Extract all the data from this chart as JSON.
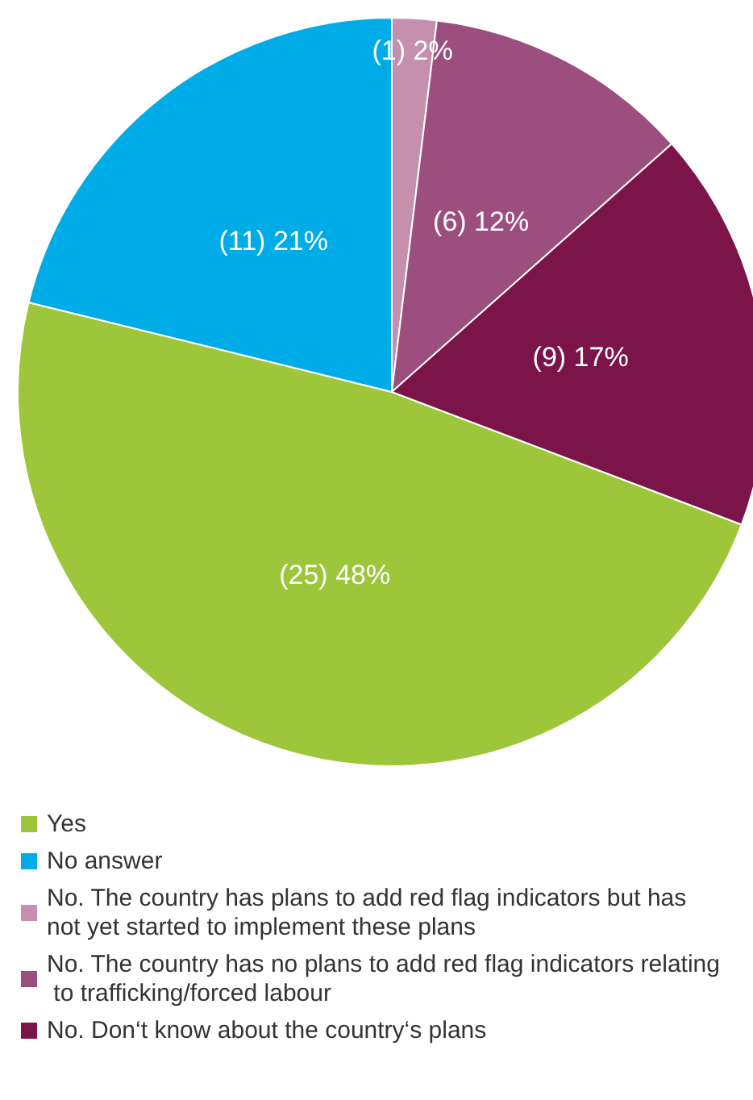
{
  "chart_data": {
    "type": "pie",
    "categories": [
      "Yes",
      "No answer",
      "No. The country has plans to add red flag indicators but has not yet started to implement these plans",
      "No. The country has no plans to add red flag indicators relating to trafficking/forced labour",
      "No. Don‘t know about the country‘s plans"
    ],
    "values": [
      25,
      11,
      1,
      6,
      9
    ],
    "value_labels": [
      "(25) 48%",
      "(11) 21%",
      "(1) 2%",
      "(6) 12%",
      "(9) 17%"
    ],
    "colors": [
      "#9dc63b",
      "#00ace8",
      "#c58fad",
      "#9c4f7e",
      "#7b1449"
    ],
    "legend": "bottom left"
  }
}
